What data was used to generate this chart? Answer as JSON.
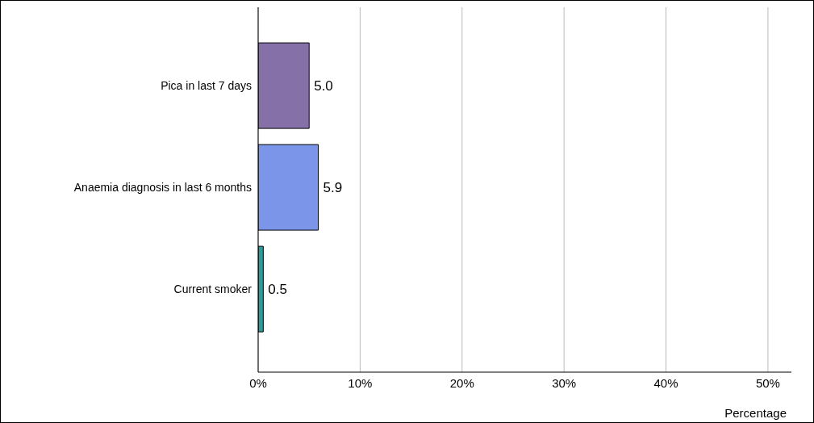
{
  "chart_data": {
    "type": "bar",
    "orientation": "horizontal",
    "xlabel": "Percentage",
    "categories": [
      "Pica in last 7 days",
      "Anaemia diagnosis in last 6 months",
      "Current smoker"
    ],
    "values": [
      5.0,
      5.9,
      0.5
    ],
    "colors": [
      "#8570a8",
      "#7b96e8",
      "#2a9d99"
    ],
    "xlim": [
      0,
      52.3
    ],
    "xticks": [
      {
        "value": 0,
        "label": "0%"
      },
      {
        "value": 10,
        "label": "10%"
      },
      {
        "value": 20,
        "label": "20%"
      },
      {
        "value": 30,
        "label": "30%"
      },
      {
        "value": 40,
        "label": "40%"
      },
      {
        "value": 50,
        "label": "50%"
      }
    ],
    "value_labels": [
      "5.0",
      "5.9",
      "0.5"
    ],
    "grid": "x",
    "legend": false
  }
}
